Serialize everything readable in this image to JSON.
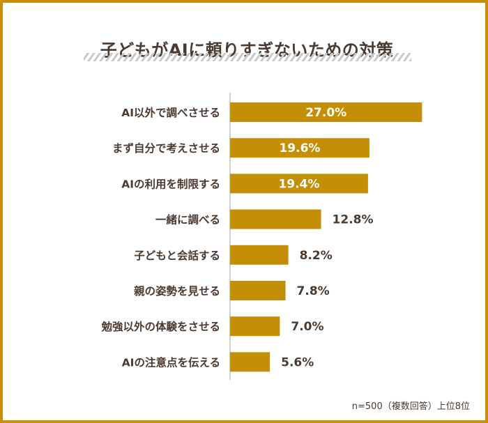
{
  "title": "子どもがAIに頼りすぎないための対策",
  "note": "n=500（複数回答）上位8位",
  "colors": {
    "bar": "#c48f06",
    "text": "#4a3a30",
    "frame": "#c8900a",
    "axis": "#bfbfbf"
  },
  "chart_data": {
    "type": "bar",
    "orientation": "horizontal",
    "categories": [
      "AI以外で調べさせる",
      "まず自分で考えさせる",
      "AIの利用を制限する",
      "一緒に調べる",
      "子どもと会話する",
      "親の姿勢を見せる",
      "勉強以外の体験をさせる",
      "AIの注意点を伝える"
    ],
    "values": [
      27.0,
      19.6,
      19.4,
      12.8,
      8.2,
      7.8,
      7.0,
      5.6
    ],
    "value_labels": [
      "27.0%",
      "19.6%",
      "19.4%",
      "12.8%",
      "8.2%",
      "7.8%",
      "7.0%",
      "5.6%"
    ],
    "unit": "%",
    "grid": false
  }
}
